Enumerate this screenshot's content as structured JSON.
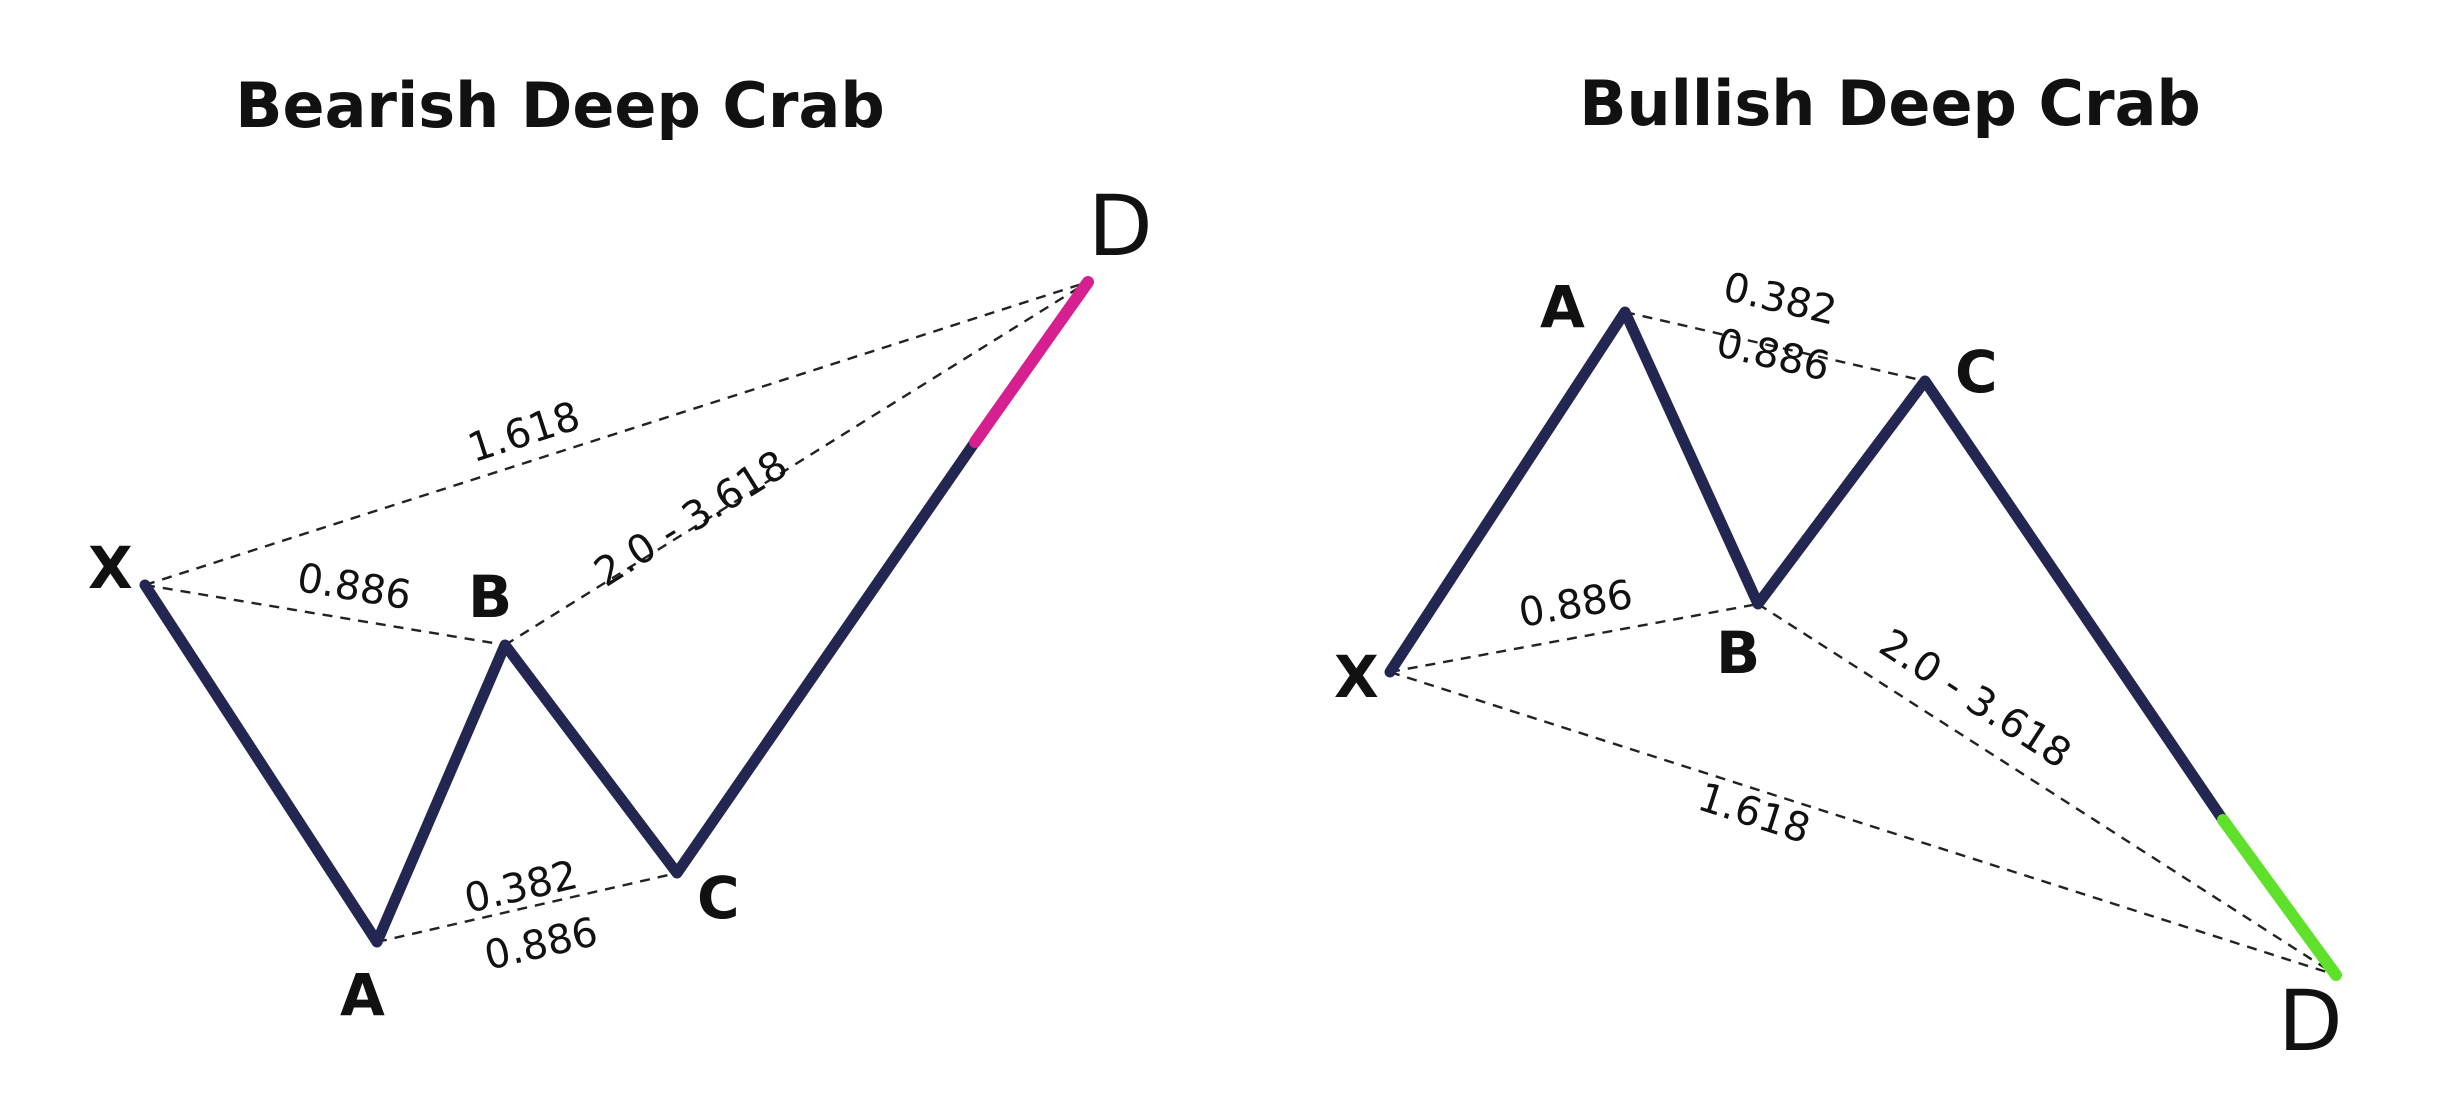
{
  "colors": {
    "leg": "#222650",
    "bearish_highlight": "#d6208f",
    "bullish_highlight": "#5fe02b",
    "text": "#111111"
  },
  "bearish": {
    "title": "Bearish Deep Crab",
    "labels": {
      "X": "X",
      "A": "A",
      "B": "B",
      "C": "C",
      "D": "D"
    },
    "ratios": {
      "xb": "0.886",
      "ac_top": "0.382",
      "ac_bottom": "0.886",
      "bd": "2.0 - 3.618",
      "xd": "1.618"
    }
  },
  "bullish": {
    "title": "Bullish Deep Crab",
    "labels": {
      "X": "X",
      "A": "A",
      "B": "B",
      "C": "C",
      "D": "D"
    },
    "ratios": {
      "ac_top": "0.382",
      "ac_bottom": "0.886",
      "xb": "0.886",
      "bd": "2.0 - 3.618",
      "xd": "1.618"
    }
  }
}
